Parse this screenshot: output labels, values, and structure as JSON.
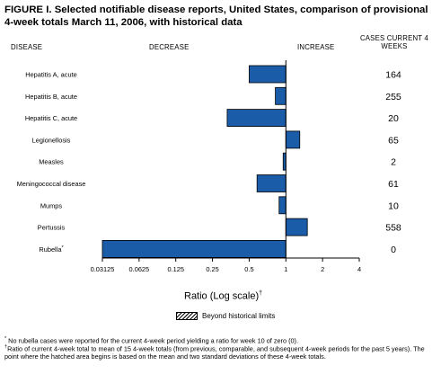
{
  "figure": {
    "title": "FIGURE I. Selected notifiable disease reports, United States, comparison of provisional 4-week totals March 11, 2006, with historical data",
    "headers": {
      "disease": "DISEASE",
      "decrease": "DECREASE",
      "increase": "INCREASE",
      "cases": "CASES CURRENT 4 WEEKS"
    },
    "legend_label": "Beyond historical limits",
    "footnotes": [
      {
        "mark": "*",
        "text": "No rubella cases were reported for the current 4-week period yielding a ratio for week 10 of zero (0)."
      },
      {
        "mark": "†",
        "text": "Ratio of current 4-week total to mean of 15 4-week totals (from previous, comparable, and subsequent 4-week periods for the past 5 years). The point where the hatched area begins is based on the mean and two standard deviations of these 4-week totals."
      }
    ]
  },
  "chart_data": {
    "type": "bar",
    "orientation": "horizontal",
    "scale": "log2",
    "xlim": [
      0.03125,
      4
    ],
    "xlabel": "Ratio (Log scale)",
    "xlabel_mark": "†",
    "reference_line": 1,
    "x_ticks": [
      "0.03125",
      "0.0625",
      "0.125",
      "0.25",
      "0.5",
      "1",
      "2",
      "4"
    ],
    "bar_color": "#1a5ca8",
    "diseases": [
      {
        "name": "Hepatitis A, acute",
        "base": "Hepatitis A",
        "sub": "",
        "suffix": ", acute",
        "ratio": 0.5,
        "cases": "164"
      },
      {
        "name": "Hepatitis B, acute",
        "base": "Hepatitis B",
        "sub": "",
        "suffix": ", acute",
        "ratio": 0.82,
        "cases": "255"
      },
      {
        "name": "Hepatitis C, acute",
        "base": "Hepatitis C",
        "sub": "",
        "suffix": ", acute",
        "ratio": 0.33,
        "cases": "20"
      },
      {
        "name": "Legionellosis",
        "base": "Legionellosis",
        "sub": "",
        "suffix": "",
        "ratio": 1.3,
        "cases": "65"
      },
      {
        "name": "Measles",
        "base": "Measles",
        "sub": "",
        "suffix": "",
        "ratio": 0.95,
        "cases": "2"
      },
      {
        "name": "Meningococcal disease",
        "base": "Meningococcal disease",
        "sub": "",
        "suffix": "",
        "ratio": 0.58,
        "cases": "61"
      },
      {
        "name": "Mumps",
        "base": "Mumps",
        "sub": "",
        "suffix": "",
        "ratio": 0.88,
        "cases": "10"
      },
      {
        "name": "Pertussis",
        "base": "Pertussis",
        "sub": "",
        "suffix": "",
        "ratio": 1.5,
        "cases": "558"
      },
      {
        "name": "Rubella",
        "base": "Rubella",
        "sub": "",
        "suffix": "",
        "mark": "*",
        "ratio": 0.03125,
        "cases": "0"
      }
    ]
  }
}
